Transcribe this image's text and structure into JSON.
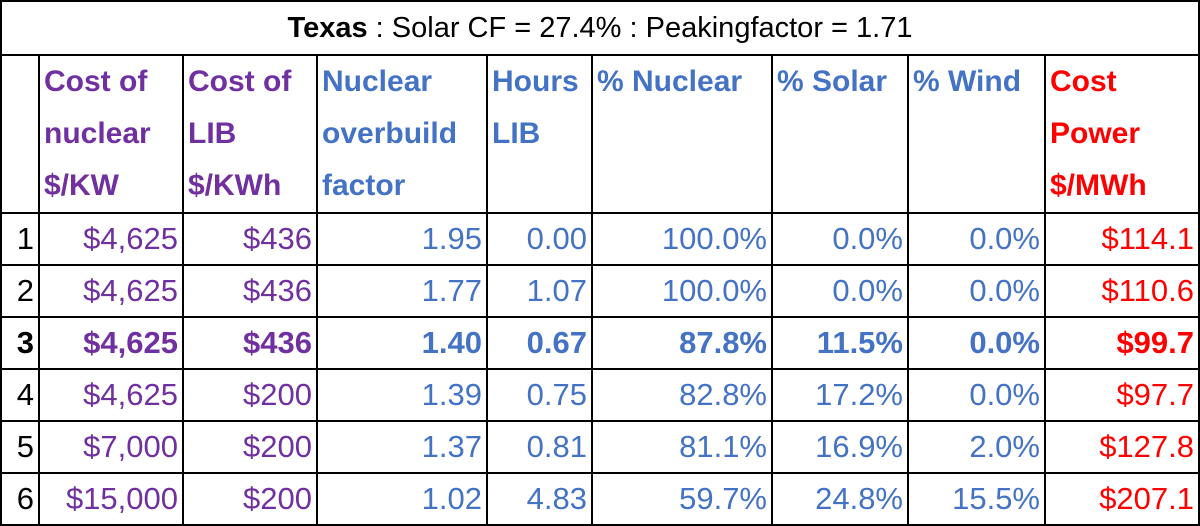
{
  "title": {
    "region": "Texas",
    "rest": " :  Solar CF = 27.4%  : Peakingfactor = 1.71"
  },
  "headers": [
    {
      "lines": [
        "",
        "",
        ""
      ],
      "color": "#000000"
    },
    {
      "lines": [
        "Cost of",
        "nuclear",
        "$/KW"
      ],
      "color": "#7030A0"
    },
    {
      "lines": [
        "Cost of",
        "LIB",
        "$/KWh"
      ],
      "color": "#7030A0"
    },
    {
      "lines": [
        "Nuclear",
        "overbuild",
        "factor"
      ],
      "color": "#4472C4"
    },
    {
      "lines": [
        "Hours",
        "LIB",
        ""
      ],
      "color": "#4472C4"
    },
    {
      "lines": [
        "% Nuclear",
        "",
        ""
      ],
      "color": "#4472C4"
    },
    {
      "lines": [
        "% Solar",
        "",
        ""
      ],
      "color": "#4472C4"
    },
    {
      "lines": [
        "% Wind",
        "",
        ""
      ],
      "color": "#4472C4"
    },
    {
      "lines": [
        "Cost",
        "Power",
        "$/MWh"
      ],
      "color": "#FF0000"
    }
  ],
  "column_colors": [
    "#000000",
    "#7030A0",
    "#7030A0",
    "#4472C4",
    "#4472C4",
    "#4472C4",
    "#4472C4",
    "#4472C4",
    "#FF0000"
  ],
  "rows": [
    {
      "cells": [
        "1",
        "$4,625",
        "$436",
        "1.95",
        "0.00",
        "100.0%",
        "0.0%",
        "0.0%",
        "$114.1"
      ],
      "bold": false
    },
    {
      "cells": [
        "2",
        "$4,625",
        "$436",
        "1.77",
        "1.07",
        "100.0%",
        "0.0%",
        "0.0%",
        "$110.6"
      ],
      "bold": false
    },
    {
      "cells": [
        "3",
        "$4,625",
        "$436",
        "1.40",
        "0.67",
        "87.8%",
        "11.5%",
        "0.0%",
        "$99.7"
      ],
      "bold": true
    },
    {
      "cells": [
        "4",
        "$4,625",
        "$200",
        "1.39",
        "0.75",
        "82.8%",
        "17.2%",
        "0.0%",
        "$97.7"
      ],
      "bold": false
    },
    {
      "cells": [
        "5",
        "$7,000",
        "$200",
        "1.37",
        "0.81",
        "81.1%",
        "16.9%",
        "2.0%",
        "$127.8"
      ],
      "bold": false
    },
    {
      "cells": [
        "6",
        "$15,000",
        "$200",
        "1.02",
        "4.83",
        "59.7%",
        "24.8%",
        "15.5%",
        "$207.1"
      ],
      "bold": false
    }
  ]
}
